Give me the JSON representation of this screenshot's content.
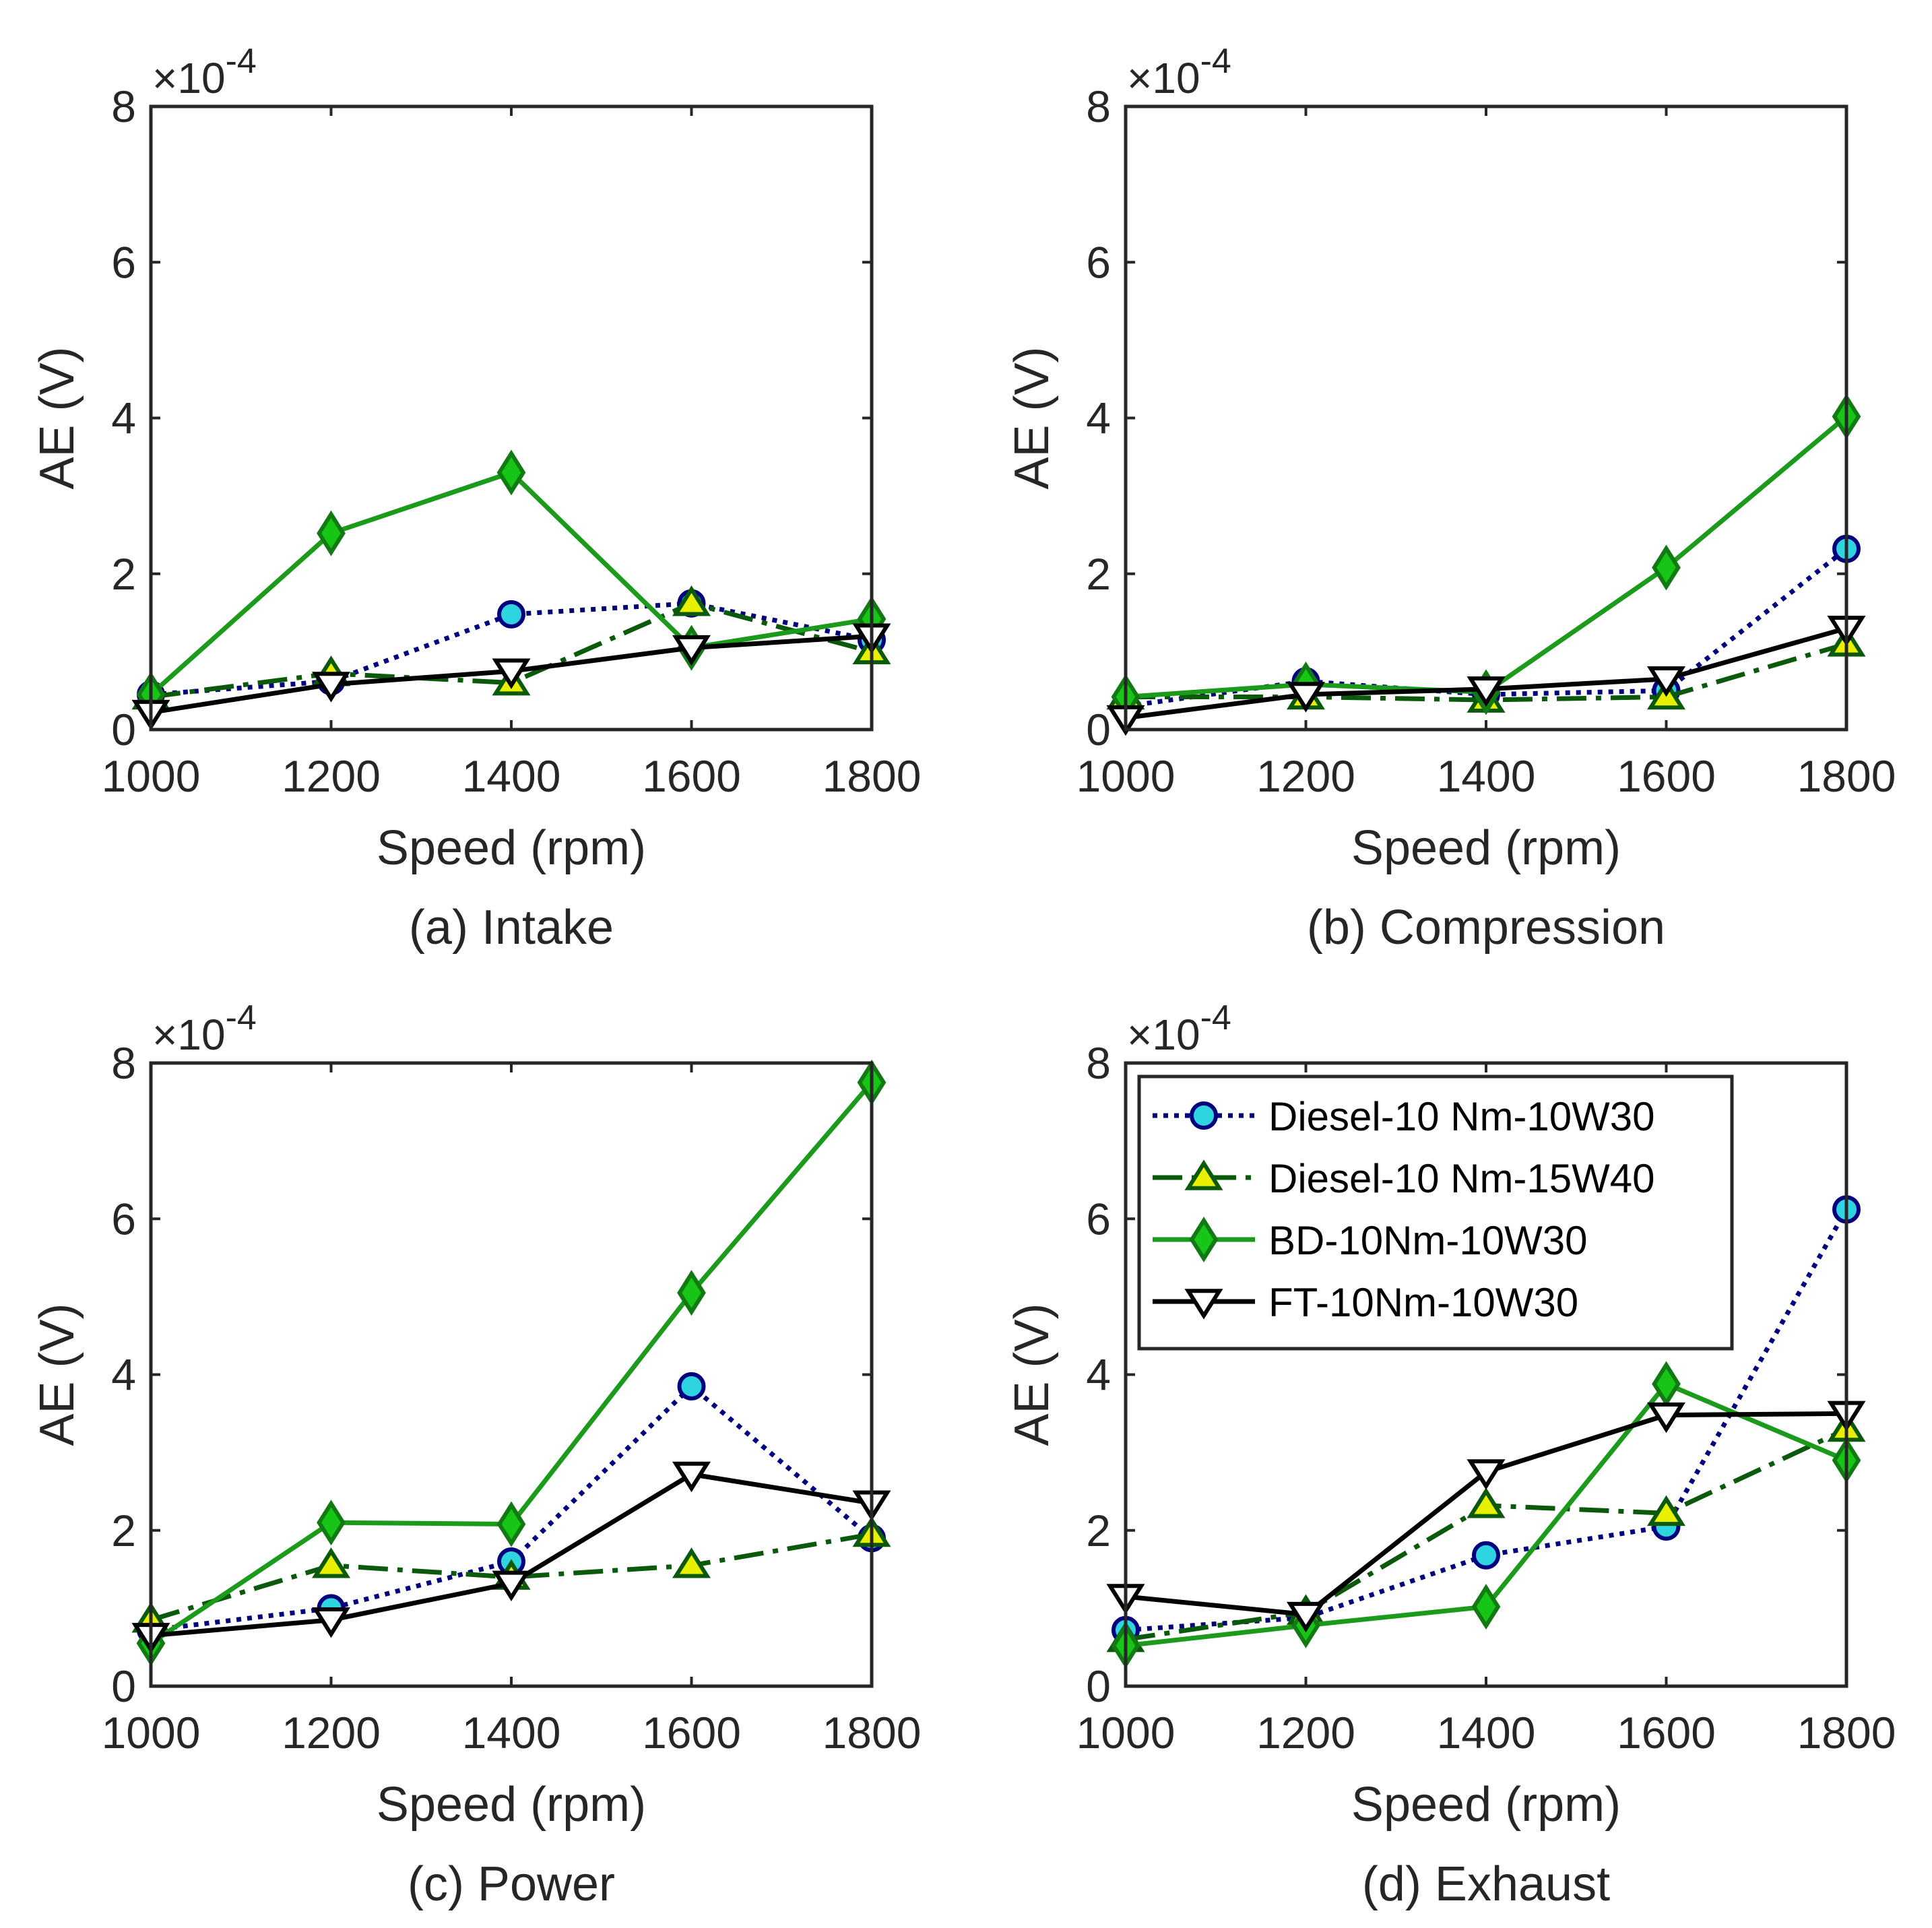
{
  "chart_data": [
    {
      "type": "line",
      "caption": "(a) Intake",
      "xlabel": "Speed (rpm)",
      "ylabel": "AE (V)",
      "exponent": "×10",
      "exponent_power": "-4",
      "x": [
        1000,
        1200,
        1400,
        1600,
        1800
      ],
      "xlim": [
        1000,
        1800
      ],
      "ylim": [
        0,
        8
      ],
      "xticks": [
        "1000",
        "1200",
        "1400",
        "1600",
        "1800"
      ],
      "yticks": [
        "0",
        "2",
        "4",
        "6",
        "8"
      ],
      "series": [
        {
          "name": "Diesel-10 Nm-10W30",
          "values": [
            0.45,
            0.62,
            1.48,
            1.62,
            1.15
          ]
        },
        {
          "name": "Diesel-10 Nm-15W40",
          "values": [
            0.42,
            0.72,
            0.6,
            1.62,
            1.0
          ]
        },
        {
          "name": "BD-10Nm-10W30",
          "values": [
            0.45,
            2.52,
            3.3,
            1.05,
            1.42
          ]
        },
        {
          "name": "FT-10Nm-10W30",
          "values": [
            0.22,
            0.58,
            0.75,
            1.05,
            1.2
          ]
        }
      ]
    },
    {
      "type": "line",
      "caption": "(b) Compression",
      "xlabel": "Speed (rpm)",
      "ylabel": "AE (V)",
      "exponent": "×10",
      "exponent_power": "-4",
      "x": [
        1000,
        1200,
        1400,
        1600,
        1800
      ],
      "xlim": [
        1000,
        1800
      ],
      "ylim": [
        0,
        8
      ],
      "xticks": [
        "1000",
        "1200",
        "1400",
        "1600",
        "1800"
      ],
      "yticks": [
        "0",
        "2",
        "4",
        "6",
        "8"
      ],
      "series": [
        {
          "name": "Diesel-10 Nm-10W30",
          "values": [
            0.3,
            0.62,
            0.45,
            0.5,
            2.32
          ]
        },
        {
          "name": "Diesel-10 Nm-15W40",
          "values": [
            0.42,
            0.42,
            0.38,
            0.42,
            1.1
          ]
        },
        {
          "name": "BD-10Nm-10W30",
          "values": [
            0.42,
            0.58,
            0.48,
            2.08,
            4.02
          ]
        },
        {
          "name": "FT-10Nm-10W30",
          "values": [
            0.15,
            0.45,
            0.52,
            0.65,
            1.3
          ]
        }
      ]
    },
    {
      "type": "line",
      "caption": "(c) Power",
      "xlabel": "Speed (rpm)",
      "ylabel": "AE (V)",
      "exponent": "×10",
      "exponent_power": "-4",
      "x": [
        1000,
        1200,
        1400,
        1600,
        1800
      ],
      "xlim": [
        1000,
        1800
      ],
      "ylim": [
        0,
        8
      ],
      "xticks": [
        "1000",
        "1200",
        "1400",
        "1600",
        "1800"
      ],
      "yticks": [
        "0",
        "2",
        "4",
        "6",
        "8"
      ],
      "series": [
        {
          "name": "Diesel-10 Nm-10W30",
          "values": [
            0.72,
            1.0,
            1.6,
            3.85,
            1.9
          ]
        },
        {
          "name": "Diesel-10 Nm-15W40",
          "values": [
            0.85,
            1.55,
            1.4,
            1.55,
            1.95
          ]
        },
        {
          "name": "BD-10Nm-10W30",
          "values": [
            0.55,
            2.1,
            2.08,
            5.05,
            7.75
          ]
        },
        {
          "name": "FT-10Nm-10W30",
          "values": [
            0.65,
            0.85,
            1.32,
            2.72,
            2.35
          ]
        }
      ]
    },
    {
      "type": "line",
      "caption": "(d) Exhaust",
      "xlabel": "Speed (rpm)",
      "ylabel": "AE (V)",
      "exponent": "×10",
      "exponent_power": "-4",
      "x": [
        1000,
        1200,
        1400,
        1600,
        1800
      ],
      "xlim": [
        1000,
        1800
      ],
      "ylim": [
        0,
        8
      ],
      "xticks": [
        "1000",
        "1200",
        "1400",
        "1600",
        "1800"
      ],
      "yticks": [
        "0",
        "2",
        "4",
        "6",
        "8"
      ],
      "legend": "top-left",
      "series": [
        {
          "name": "Diesel-10 Nm-10W30",
          "values": [
            0.72,
            0.88,
            1.68,
            2.05,
            6.12
          ]
        },
        {
          "name": "Diesel-10 Nm-15W40",
          "values": [
            0.6,
            0.95,
            2.32,
            2.22,
            3.3
          ]
        },
        {
          "name": "BD-10Nm-10W30",
          "values": [
            0.52,
            0.78,
            1.02,
            3.88,
            2.9
          ]
        },
        {
          "name": "FT-10Nm-10W30",
          "values": [
            1.15,
            0.92,
            2.75,
            3.48,
            3.5
          ]
        }
      ]
    }
  ],
  "series_styles": [
    {
      "line_color": "#00007F",
      "dash": "7,9",
      "marker": "circle",
      "marker_fill": "#2ED5E0",
      "marker_edge": "#00007F"
    },
    {
      "line_color": "#0B5A0B",
      "dash": "44,14,8,14",
      "marker": "triangle-up",
      "marker_fill": "#E8F000",
      "marker_edge": "#0B5A0B"
    },
    {
      "line_color": "#1B9A1B",
      "dash": "",
      "marker": "diamond",
      "marker_fill": "#16C516",
      "marker_edge": "#127A12"
    },
    {
      "line_color": "#000000",
      "dash": "",
      "marker": "triangle-down",
      "marker_fill": "#FFFFFF",
      "marker_edge": "#000000"
    }
  ]
}
